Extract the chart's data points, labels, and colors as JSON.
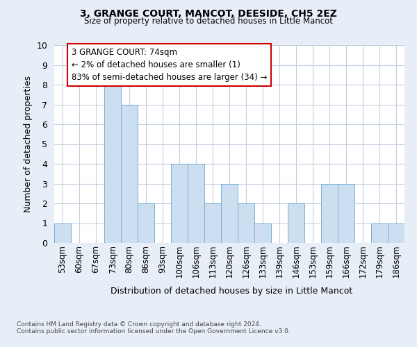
{
  "title_line1": "3, GRANGE COURT, MANCOT, DEESIDE, CH5 2EZ",
  "title_line2": "Size of property relative to detached houses in Little Mancot",
  "xlabel": "Distribution of detached houses by size in Little Mancot",
  "ylabel": "Number of detached properties",
  "categories": [
    "53sqm",
    "60sqm",
    "67sqm",
    "73sqm",
    "80sqm",
    "86sqm",
    "93sqm",
    "100sqm",
    "106sqm",
    "113sqm",
    "120sqm",
    "126sqm",
    "133sqm",
    "139sqm",
    "146sqm",
    "153sqm",
    "159sqm",
    "166sqm",
    "172sqm",
    "179sqm",
    "186sqm"
  ],
  "values": [
    1,
    0,
    0,
    8,
    7,
    2,
    0,
    4,
    4,
    2,
    3,
    2,
    1,
    0,
    2,
    0,
    3,
    3,
    0,
    1,
    1
  ],
  "bar_color": "#ccdff0",
  "bar_edge_color": "#7aafd4",
  "annotation_box_text": "3 GRANGE COURT: 74sqm\n← 2% of detached houses are smaller (1)\n83% of semi-detached houses are larger (34) →",
  "annotation_box_color": "#ffffff",
  "annotation_box_edge_color": "#cc0000",
  "ylim": [
    0,
    10
  ],
  "yticks": [
    0,
    1,
    2,
    3,
    4,
    5,
    6,
    7,
    8,
    9,
    10
  ],
  "background_color": "#e8eef8",
  "plot_background_color": "#ffffff",
  "grid_color": "#c5cfe0",
  "footnote1": "Contains HM Land Registry data © Crown copyright and database right 2024.",
  "footnote2": "Contains public sector information licensed under the Open Government Licence v3.0."
}
